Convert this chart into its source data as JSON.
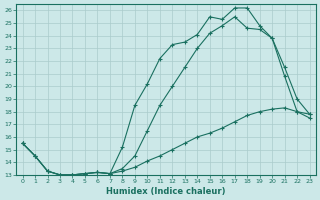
{
  "xlabel": "Humidex (Indice chaleur)",
  "bg_color": "#cce8e8",
  "grid_color": "#aacccc",
  "line_color": "#1a7060",
  "xlim": [
    -0.5,
    23.5
  ],
  "ylim": [
    13,
    26.5
  ],
  "xticks": [
    0,
    1,
    2,
    3,
    4,
    5,
    6,
    7,
    8,
    9,
    10,
    11,
    12,
    13,
    14,
    15,
    16,
    17,
    18,
    19,
    20,
    21,
    22,
    23
  ],
  "yticks": [
    13,
    14,
    15,
    16,
    17,
    18,
    19,
    20,
    21,
    22,
    23,
    24,
    25,
    26
  ],
  "line1_x": [
    0,
    1,
    2,
    3,
    4,
    5,
    6,
    7,
    8,
    9,
    10,
    11,
    12,
    13,
    14,
    15,
    16,
    17,
    18,
    19,
    20,
    21,
    22,
    23
  ],
  "line1_y": [
    15.5,
    14.5,
    13.3,
    13.0,
    13.0,
    13.1,
    13.2,
    13.1,
    15.2,
    18.5,
    20.2,
    22.2,
    23.3,
    23.5,
    24.1,
    25.5,
    25.3,
    26.2,
    26.2,
    24.8,
    23.8,
    21.5,
    19.0,
    17.8
  ],
  "line2_x": [
    0,
    1,
    2,
    3,
    4,
    5,
    6,
    7,
    8,
    9,
    10,
    11,
    12,
    13,
    14,
    15,
    16,
    17,
    18,
    19,
    20,
    21,
    22,
    23
  ],
  "line2_y": [
    15.5,
    14.5,
    13.3,
    13.0,
    13.0,
    13.1,
    13.2,
    13.1,
    13.3,
    13.6,
    14.1,
    14.5,
    15.0,
    15.5,
    16.0,
    16.3,
    16.7,
    17.2,
    17.7,
    18.0,
    18.2,
    18.3,
    18.0,
    17.8
  ],
  "line3_x": [
    0,
    1,
    2,
    3,
    4,
    5,
    6,
    7,
    8,
    9,
    10,
    11,
    12,
    13,
    14,
    15,
    16,
    17,
    18,
    19,
    20,
    21,
    22,
    23
  ],
  "line3_y": [
    15.5,
    14.5,
    13.3,
    13.0,
    13.0,
    13.1,
    13.2,
    13.1,
    13.5,
    14.5,
    16.5,
    18.5,
    20.0,
    21.5,
    23.0,
    24.2,
    24.8,
    25.5,
    24.6,
    24.5,
    23.8,
    20.8,
    18.0,
    17.5
  ]
}
